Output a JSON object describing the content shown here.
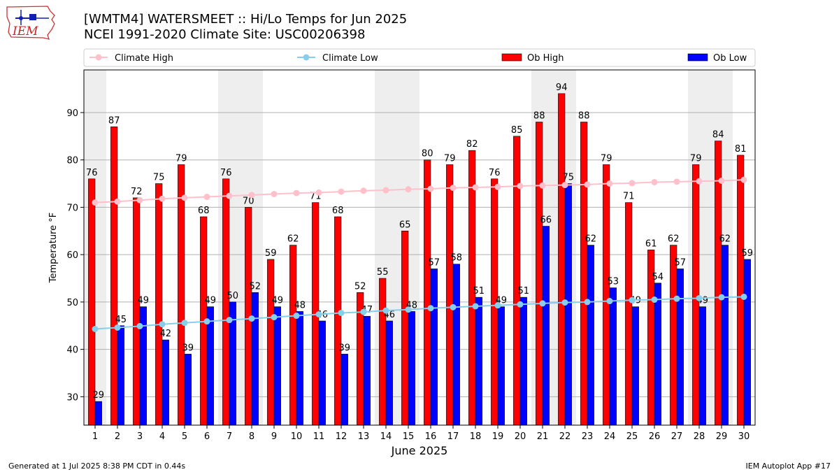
{
  "header": {
    "title_line1": "[WMTM4] WATERSMEET :: Hi/Lo Temps for Jun 2025",
    "title_line2": "NCEI 1991-2020 Climate Site: USC00206398",
    "logo_text": "IEM"
  },
  "footer": {
    "generated": "Generated at 1 Jul 2025 8:38 PM CDT in 0.44s",
    "app": "IEM Autoplot App #17"
  },
  "colors": {
    "ob_high": "#ff0000",
    "ob_low": "#0000ff",
    "climate_high": "#ffc0cb",
    "climate_low": "#87ceeb",
    "weekend_shade": "#eeeeee",
    "grid": "#b0b0b0"
  },
  "chart_data": {
    "type": "bar",
    "xlabel": "June 2025",
    "ylabel": "Temperature °F",
    "ylim": [
      24,
      99
    ],
    "yticks": [
      30,
      40,
      50,
      60,
      70,
      80,
      90
    ],
    "grid": "horizontal",
    "legend_position": "top",
    "categories": [
      1,
      2,
      3,
      4,
      5,
      6,
      7,
      8,
      9,
      10,
      11,
      12,
      13,
      14,
      15,
      16,
      17,
      18,
      19,
      20,
      21,
      22,
      23,
      24,
      25,
      26,
      27,
      28,
      29,
      30
    ],
    "shaded_weekend_days": [
      1,
      7,
      8,
      14,
      15,
      21,
      22,
      28,
      29
    ],
    "series": [
      {
        "name": "Ob High",
        "kind": "bar",
        "values": [
          76,
          87,
          72,
          75,
          79,
          68,
          76,
          70,
          59,
          62,
          71,
          68,
          52,
          55,
          65,
          80,
          79,
          82,
          76,
          85,
          88,
          94,
          88,
          79,
          71,
          61,
          62,
          79,
          84,
          81
        ]
      },
      {
        "name": "Ob Low",
        "kind": "bar",
        "values": [
          29,
          45,
          49,
          42,
          39,
          49,
          50,
          52,
          49,
          48,
          46,
          39,
          47,
          46,
          48,
          57,
          58,
          51,
          49,
          51,
          66,
          75,
          62,
          53,
          49,
          54,
          57,
          49,
          62,
          59
        ]
      },
      {
        "name": "Climate High",
        "kind": "line",
        "values": [
          71.0,
          71.2,
          71.5,
          71.8,
          72.0,
          72.2,
          72.4,
          72.6,
          72.8,
          73.0,
          73.1,
          73.3,
          73.5,
          73.6,
          73.8,
          73.9,
          74.1,
          74.2,
          74.3,
          74.5,
          74.6,
          74.7,
          74.8,
          75.0,
          75.1,
          75.3,
          75.4,
          75.5,
          75.6,
          75.8
        ]
      },
      {
        "name": "Climate Low",
        "kind": "line",
        "values": [
          44.3,
          44.6,
          44.9,
          45.3,
          45.6,
          45.9,
          46.2,
          46.5,
          46.8,
          47.1,
          47.4,
          47.7,
          47.9,
          48.2,
          48.4,
          48.7,
          48.9,
          49.1,
          49.3,
          49.5,
          49.7,
          49.9,
          50.0,
          50.2,
          50.4,
          50.5,
          50.7,
          50.8,
          51.0,
          51.1
        ]
      }
    ]
  }
}
